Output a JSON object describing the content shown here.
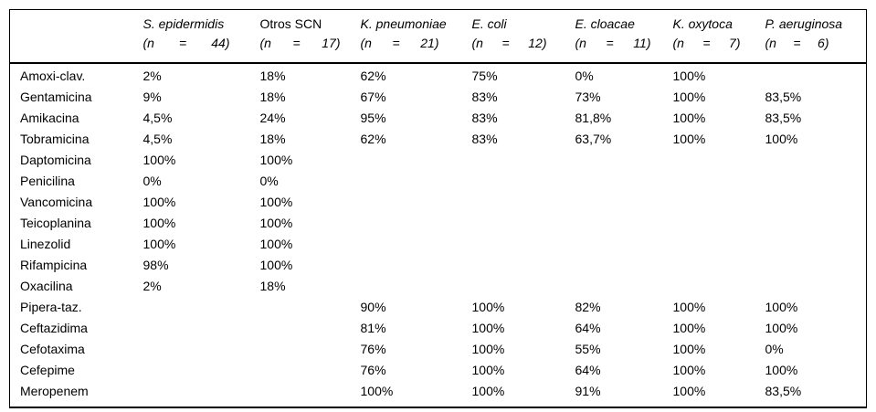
{
  "table": {
    "headers": [
      {
        "label": ""
      },
      {
        "name": "S. epidermidis",
        "n_parts": [
          "(n",
          "=",
          "44)"
        ]
      },
      {
        "name": "Otros SCN",
        "n_parts": [
          "(n",
          "=",
          "17)"
        ]
      },
      {
        "name": "K. pneumoniae",
        "n_parts": [
          "(n",
          "=",
          "21)"
        ]
      },
      {
        "name": "E. coli",
        "n_parts": [
          "(n",
          "=",
          "12)"
        ]
      },
      {
        "name": "E. cloacae",
        "n_parts": [
          "(n",
          "=",
          "11)"
        ]
      },
      {
        "name": "K. oxytoca",
        "n_parts": [
          "(n",
          "=",
          "7)"
        ]
      },
      {
        "name": "P. aeruginosa",
        "n_parts": [
          "(n",
          "=",
          "6)"
        ]
      }
    ],
    "rows": [
      {
        "label": "Amoxi-clav.",
        "values": [
          "2%",
          "18%",
          "62%",
          "75%",
          "0%",
          "100%",
          ""
        ]
      },
      {
        "label": "Gentamicina",
        "values": [
          "9%",
          "18%",
          "67%",
          "83%",
          "73%",
          "100%",
          "83,5%"
        ]
      },
      {
        "label": "Amikacina",
        "values": [
          "4,5%",
          "24%",
          "95%",
          "83%",
          "81,8%",
          "100%",
          "83,5%"
        ]
      },
      {
        "label": "Tobramicina",
        "values": [
          "4,5%",
          "18%",
          "62%",
          "83%",
          "63,7%",
          "100%",
          "100%"
        ]
      },
      {
        "label": "Daptomicina",
        "values": [
          "100%",
          "100%",
          "",
          "",
          "",
          "",
          ""
        ]
      },
      {
        "label": "Penicilina",
        "values": [
          "0%",
          "0%",
          "",
          "",
          "",
          "",
          ""
        ]
      },
      {
        "label": "Vancomicina",
        "values": [
          "100%",
          "100%",
          "",
          "",
          "",
          "",
          ""
        ]
      },
      {
        "label": "Teicoplanina",
        "values": [
          "100%",
          "100%",
          "",
          "",
          "",
          "",
          ""
        ]
      },
      {
        "label": "Linezolid",
        "values": [
          "100%",
          "100%",
          "",
          "",
          "",
          "",
          ""
        ]
      },
      {
        "label": "Rifampicina",
        "values": [
          "98%",
          "100%",
          "",
          "",
          "",
          "",
          ""
        ]
      },
      {
        "label": "Oxacilina",
        "values": [
          "2%",
          "18%",
          "",
          "",
          "",
          "",
          ""
        ]
      },
      {
        "label": "Pipera-taz.",
        "values": [
          "",
          "",
          "90%",
          "100%",
          "82%",
          "100%",
          "100%"
        ]
      },
      {
        "label": "Ceftazidima",
        "values": [
          "",
          "",
          "81%",
          "100%",
          "64%",
          "100%",
          "100%"
        ]
      },
      {
        "label": "Cefotaxima",
        "values": [
          "",
          "",
          "76%",
          "100%",
          "55%",
          "100%",
          "0%"
        ]
      },
      {
        "label": "Cefepime",
        "values": [
          "",
          "",
          "76%",
          "100%",
          "64%",
          "100%",
          "100%"
        ]
      },
      {
        "label": "Meropenem",
        "values": [
          "",
          "",
          "100%",
          "100%",
          "91%",
          "100%",
          "83,5%"
        ]
      }
    ]
  }
}
